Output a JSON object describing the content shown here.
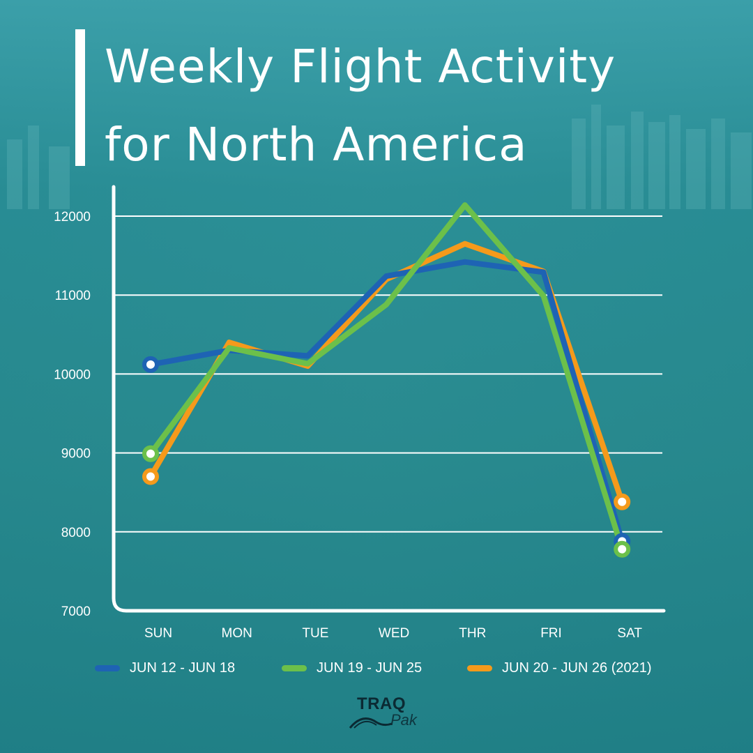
{
  "title": {
    "line1": "Weekly Flight Activity",
    "line2": "for North America"
  },
  "chart_data": {
    "type": "line",
    "title": "Weekly Flight Activity for North America",
    "xlabel": "",
    "ylabel": "",
    "categories": [
      "SUN",
      "MON",
      "TUE",
      "WED",
      "THR",
      "FRI",
      "SAT"
    ],
    "yticks": [
      7000,
      8000,
      9000,
      10000,
      11000,
      12000
    ],
    "ylim": [
      7000,
      12300
    ],
    "grid": true,
    "legend_position": "bottom",
    "series": [
      {
        "name": "JUN 20 - JUN 26 (2021)",
        "color": "#f59a1b",
        "values": [
          8700,
          10400,
          10100,
          11200,
          11650,
          11300,
          8380
        ]
      },
      {
        "name": "JUN 12 - JUN 18",
        "color": "#1e63b4",
        "values": [
          10120,
          10300,
          10230,
          11240,
          11420,
          11290,
          7880
        ]
      },
      {
        "name": "JUN 19 - JUN 25",
        "color": "#6cc04a",
        "values": [
          8990,
          10330,
          10130,
          10880,
          12140,
          10990,
          7780
        ]
      }
    ]
  },
  "legend": [
    {
      "label": "JUN 12 - JUN 18",
      "color": "#1e63b4"
    },
    {
      "label": "JUN 19 - JUN 25",
      "color": "#6cc04a"
    },
    {
      "label": "JUN 20 - JUN 26 (2021)",
      "color": "#f59a1b"
    }
  ],
  "logo": {
    "top": "TRAQ",
    "bottom": "Pak"
  },
  "colors": {
    "background": "#2a8f93",
    "text": "#ffffff",
    "gridline": "#ffffff",
    "axis": "#ffffff"
  }
}
